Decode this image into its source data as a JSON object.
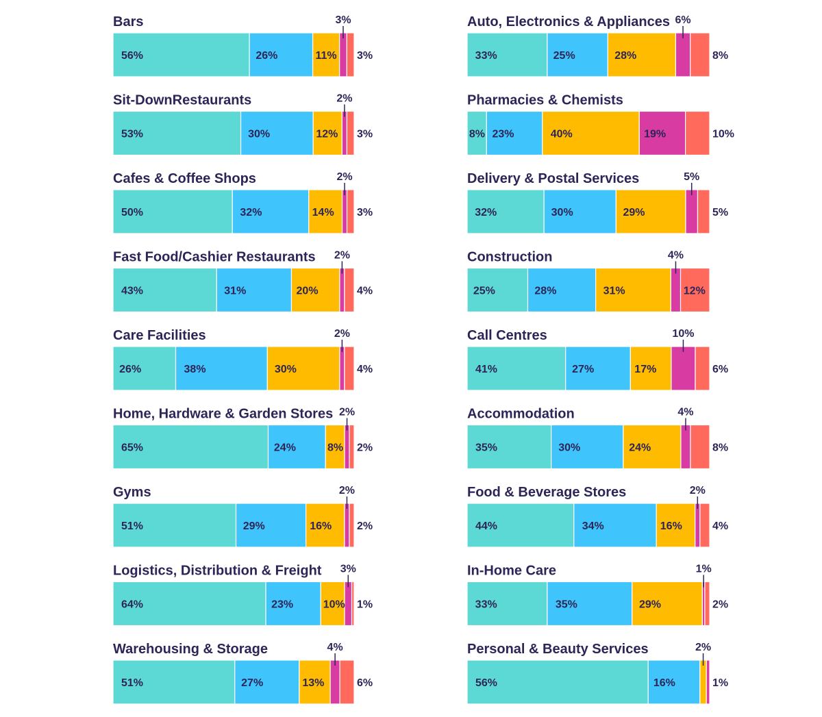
{
  "chart_data": {
    "type": "bar",
    "orientation": "horizontal",
    "stacked": true,
    "segment_colors": [
      "#5dd9d5",
      "#40c4fc",
      "#ffbb00",
      "#d83ba2",
      "#ff6a5c"
    ],
    "panels": [
      {
        "title": "Bars",
        "values": [
          56,
          26,
          11,
          3,
          3
        ],
        "labels": [
          "56%",
          "26%",
          "11%",
          "3%",
          "3%"
        ]
      },
      {
        "title": "Sit-DownRestaurants",
        "values": [
          53,
          30,
          12,
          2,
          3
        ],
        "labels": [
          "53%",
          "30%",
          "12%",
          "2%",
          "3%"
        ]
      },
      {
        "title": "Cafes & Coffee Shops",
        "values": [
          50,
          32,
          14,
          2,
          3
        ],
        "labels": [
          "50%",
          "32%",
          "14%",
          "2%",
          "3%"
        ]
      },
      {
        "title": "Fast Food/Cashier Restaurants",
        "values": [
          43,
          31,
          20,
          2,
          4
        ],
        "labels": [
          "43%",
          "31%",
          "20%",
          "2%",
          "4%"
        ]
      },
      {
        "title": "Care Facilities",
        "values": [
          26,
          38,
          30,
          2,
          4
        ],
        "labels": [
          "26%",
          "38%",
          "30%",
          "2%",
          "4%"
        ]
      },
      {
        "title": "Home, Hardware & Garden Stores",
        "values": [
          65,
          24,
          8,
          2,
          2
        ],
        "labels": [
          "65%",
          "24%",
          "8%",
          "2%",
          "2%"
        ]
      },
      {
        "title": "Gyms",
        "values": [
          51,
          29,
          16,
          2,
          2
        ],
        "labels": [
          "51%",
          "29%",
          "16%",
          "2%",
          "2%"
        ]
      },
      {
        "title": "Logistics, Distribution & Freight",
        "values": [
          64,
          23,
          10,
          3,
          1
        ],
        "labels": [
          "64%",
          "23%",
          "10%",
          "3%",
          "1%"
        ]
      },
      {
        "title": "Warehousing & Storage",
        "values": [
          51,
          27,
          13,
          4,
          6
        ],
        "labels": [
          "51%",
          "27%",
          "13%",
          "4%",
          "6%"
        ]
      },
      {
        "title": "Auto, Electronics & Appliances",
        "values": [
          33,
          25,
          28,
          6,
          8
        ],
        "labels": [
          "33%",
          "25%",
          "28%",
          "6%",
          "8%"
        ]
      },
      {
        "title": "Pharmacies & Chemists",
        "values": [
          8,
          23,
          40,
          19,
          10
        ],
        "labels": [
          "8%",
          "23%",
          "40%",
          "19%",
          "10%"
        ]
      },
      {
        "title": "Delivery & Postal Services",
        "values": [
          32,
          30,
          29,
          5,
          5
        ],
        "labels": [
          "32%",
          "30%",
          "29%",
          "5%",
          "5%"
        ]
      },
      {
        "title": "Construction",
        "values": [
          25,
          28,
          31,
          4,
          12
        ],
        "labels": [
          "25%",
          "28%",
          "31%",
          "4%",
          "12%"
        ]
      },
      {
        "title": "Call Centres",
        "values": [
          41,
          27,
          17,
          10,
          6
        ],
        "labels": [
          "41%",
          "27%",
          "17%",
          "10%",
          "6%"
        ]
      },
      {
        "title": "Accommodation",
        "values": [
          35,
          30,
          24,
          4,
          8
        ],
        "labels": [
          "35%",
          "30%",
          "24%",
          "4%",
          "8%"
        ]
      },
      {
        "title": "Food & Beverage Stores",
        "values": [
          44,
          34,
          16,
          2,
          4
        ],
        "labels": [
          "44%",
          "34%",
          "16%",
          "2%",
          "4%"
        ]
      },
      {
        "title": "In-Home Care",
        "values": [
          33,
          35,
          29,
          1,
          2
        ],
        "labels": [
          "33%",
          "35%",
          "29%",
          "1%",
          "2%"
        ]
      },
      {
        "title": "Personal & Beauty Services",
        "values": [
          56,
          16,
          2,
          1
        ],
        "labels": [
          "56%",
          "16%",
          "2%",
          "1%"
        ]
      }
    ]
  }
}
